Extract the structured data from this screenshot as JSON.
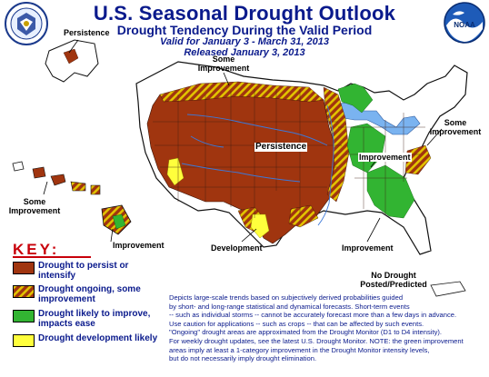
{
  "header": {
    "title": "U.S. Seasonal Drought Outlook",
    "subtitle": "Drought Tendency During the Valid Period",
    "valid": "Valid for January 3 - March 31, 2013",
    "released": "Released January 3, 2013"
  },
  "map_labels": {
    "persistence_alaska": "Persistence",
    "some_improvement_north_1": "Some",
    "some_improvement_north_2": "Improvement",
    "persistence_center": "Persistence",
    "some_improvement_east_1": "Some",
    "some_improvement_east_2": "Improvement",
    "improvement_ohio": "Improvement",
    "some_improvement_hawaii_1": "Some",
    "some_improvement_hawaii_2": "Improvement",
    "improvement_hawaii": "Improvement",
    "development": "Development",
    "improvement_southeast": "Improvement",
    "no_drought_pr_1": "No Drought",
    "no_drought_pr_2": "Posted/Predicted"
  },
  "key": {
    "title": "KEY:",
    "items": [
      {
        "label": "Drought to persist or intensify",
        "color": "#a0350f"
      },
      {
        "label": "Drought ongoing, some improvement",
        "color": "#a0350f",
        "stripe": "#e2c400"
      },
      {
        "label": "Drought likely to improve, impacts ease",
        "color": "#32b432"
      },
      {
        "label": "Drought development likely",
        "color": "#ffff3c"
      }
    ]
  },
  "note": {
    "lines": [
      "Depicts large-scale trends based on subjectively derived probabilities guided",
      "by short- and long-range statistical and dynamical forecasts. Short-term events",
      "-- such as individual storms -- cannot be accurately forecast more than a few days in advance.",
      "Use caution for applications -- such as crops -- that can be affected by such events.",
      "\"Ongoing\" drought areas are approximated from the Drought Monitor (D1 to D4 intensity).",
      "For weekly drought updates, see the latest U.S. Drought Monitor. NOTE: the green improvement",
      "areas imply at least a 1-category improvement in the Drought Monitor intensity levels,",
      "but do not necessarily imply drought elimination."
    ]
  },
  "colors": {
    "land": "#ffffff",
    "persist": "#a0350f",
    "stripe": "#e2c400",
    "improve": "#32b432",
    "develop": "#ffff3c",
    "water": "#7ab3f0",
    "title": "#0a1a8c",
    "key": "#c8000a"
  },
  "logos": {
    "left": "department-of-commerce-seal",
    "right": "noaa-logo"
  }
}
